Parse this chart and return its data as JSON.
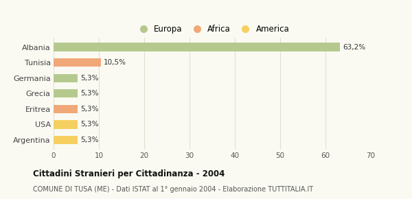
{
  "categories": [
    "Albania",
    "Tunisia",
    "Germania",
    "Grecia",
    "Eritrea",
    "USA",
    "Argentina"
  ],
  "values": [
    63.2,
    10.5,
    5.3,
    5.3,
    5.3,
    5.3,
    5.3
  ],
  "labels": [
    "63,2%",
    "10,5%",
    "5,3%",
    "5,3%",
    "5,3%",
    "5,3%",
    "5,3%"
  ],
  "bar_colors": [
    "#b5c98e",
    "#f0a878",
    "#b5c98e",
    "#b5c98e",
    "#f0a878",
    "#f5d060",
    "#f5d060"
  ],
  "legend_items": [
    {
      "label": "Europa",
      "color": "#b5c98e"
    },
    {
      "label": "Africa",
      "color": "#f0a878"
    },
    {
      "label": "America",
      "color": "#f5d060"
    }
  ],
  "xlim": [
    0,
    70
  ],
  "xticks": [
    0,
    10,
    20,
    30,
    40,
    50,
    60,
    70
  ],
  "title": "Cittadini Stranieri per Cittadinanza - 2004",
  "subtitle": "COMUNE DI TUSA (ME) - Dati ISTAT al 1° gennaio 2004 - Elaborazione TUTTITALIA.IT",
  "background_color": "#fafaf2",
  "grid_color": "#e0e0d0",
  "label_fontsize": 7.5,
  "ytick_fontsize": 8,
  "xtick_fontsize": 7.5,
  "bar_height": 0.55,
  "title_fontsize": 8.5,
  "subtitle_fontsize": 7,
  "legend_fontsize": 8.5
}
